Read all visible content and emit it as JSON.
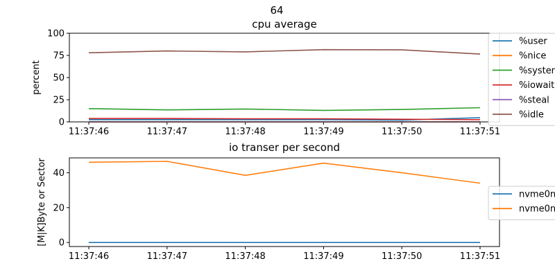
{
  "suptitle": "64",
  "chart_data": [
    {
      "type": "line",
      "title": "cpu average",
      "xlabel": "",
      "ylabel": "percent",
      "categories": [
        "11:37:46",
        "11:37:47",
        "11:37:48",
        "11:37:49",
        "11:37:50",
        "11:37:51"
      ],
      "ylim": [
        0,
        100
      ],
      "yticks": [
        0,
        25,
        50,
        75,
        100
      ],
      "grid": false,
      "legend_position": "right",
      "series": [
        {
          "name": "%user",
          "color": "#1f77b4",
          "values": [
            2.5,
            2.5,
            2.5,
            2.5,
            2.0,
            4.8
          ]
        },
        {
          "name": "%nice",
          "color": "#ff7f0e",
          "values": [
            0,
            0,
            0,
            0,
            0,
            0
          ]
        },
        {
          "name": "%system",
          "color": "#2ca02c",
          "values": [
            15,
            13.5,
            14.5,
            13,
            14,
            16
          ]
        },
        {
          "name": "%iowait",
          "color": "#d62728",
          "values": [
            3.8,
            3.8,
            3.5,
            3.5,
            3.0,
            2.5
          ]
        },
        {
          "name": "%steal",
          "color": "#9467bd",
          "values": [
            0,
            0,
            0,
            0,
            0,
            0
          ]
        },
        {
          "name": "%idle",
          "color": "#8c564b",
          "values": [
            78,
            80,
            79,
            81.5,
            81.3,
            76.5
          ]
        }
      ]
    },
    {
      "type": "line",
      "title": "io transer per second",
      "xlabel": "",
      "ylabel": "[M|K]Byte or Sector",
      "categories": [
        "11:37:46",
        "11:37:47",
        "11:37:48",
        "11:37:49",
        "11:37:50",
        "11:37:51"
      ],
      "ylim": [
        -2.3,
        48.5
      ],
      "yticks": [
        0,
        20,
        40
      ],
      "grid": false,
      "legend_position": "right",
      "series": [
        {
          "name": "nvme0n",
          "color": "#1f77b4",
          "values": [
            0,
            0,
            0,
            0,
            0,
            0
          ]
        },
        {
          "name": "nvme0n",
          "color": "#ff7f0e",
          "values": [
            46,
            46.5,
            38.5,
            45.5,
            40,
            34
          ]
        }
      ]
    }
  ]
}
